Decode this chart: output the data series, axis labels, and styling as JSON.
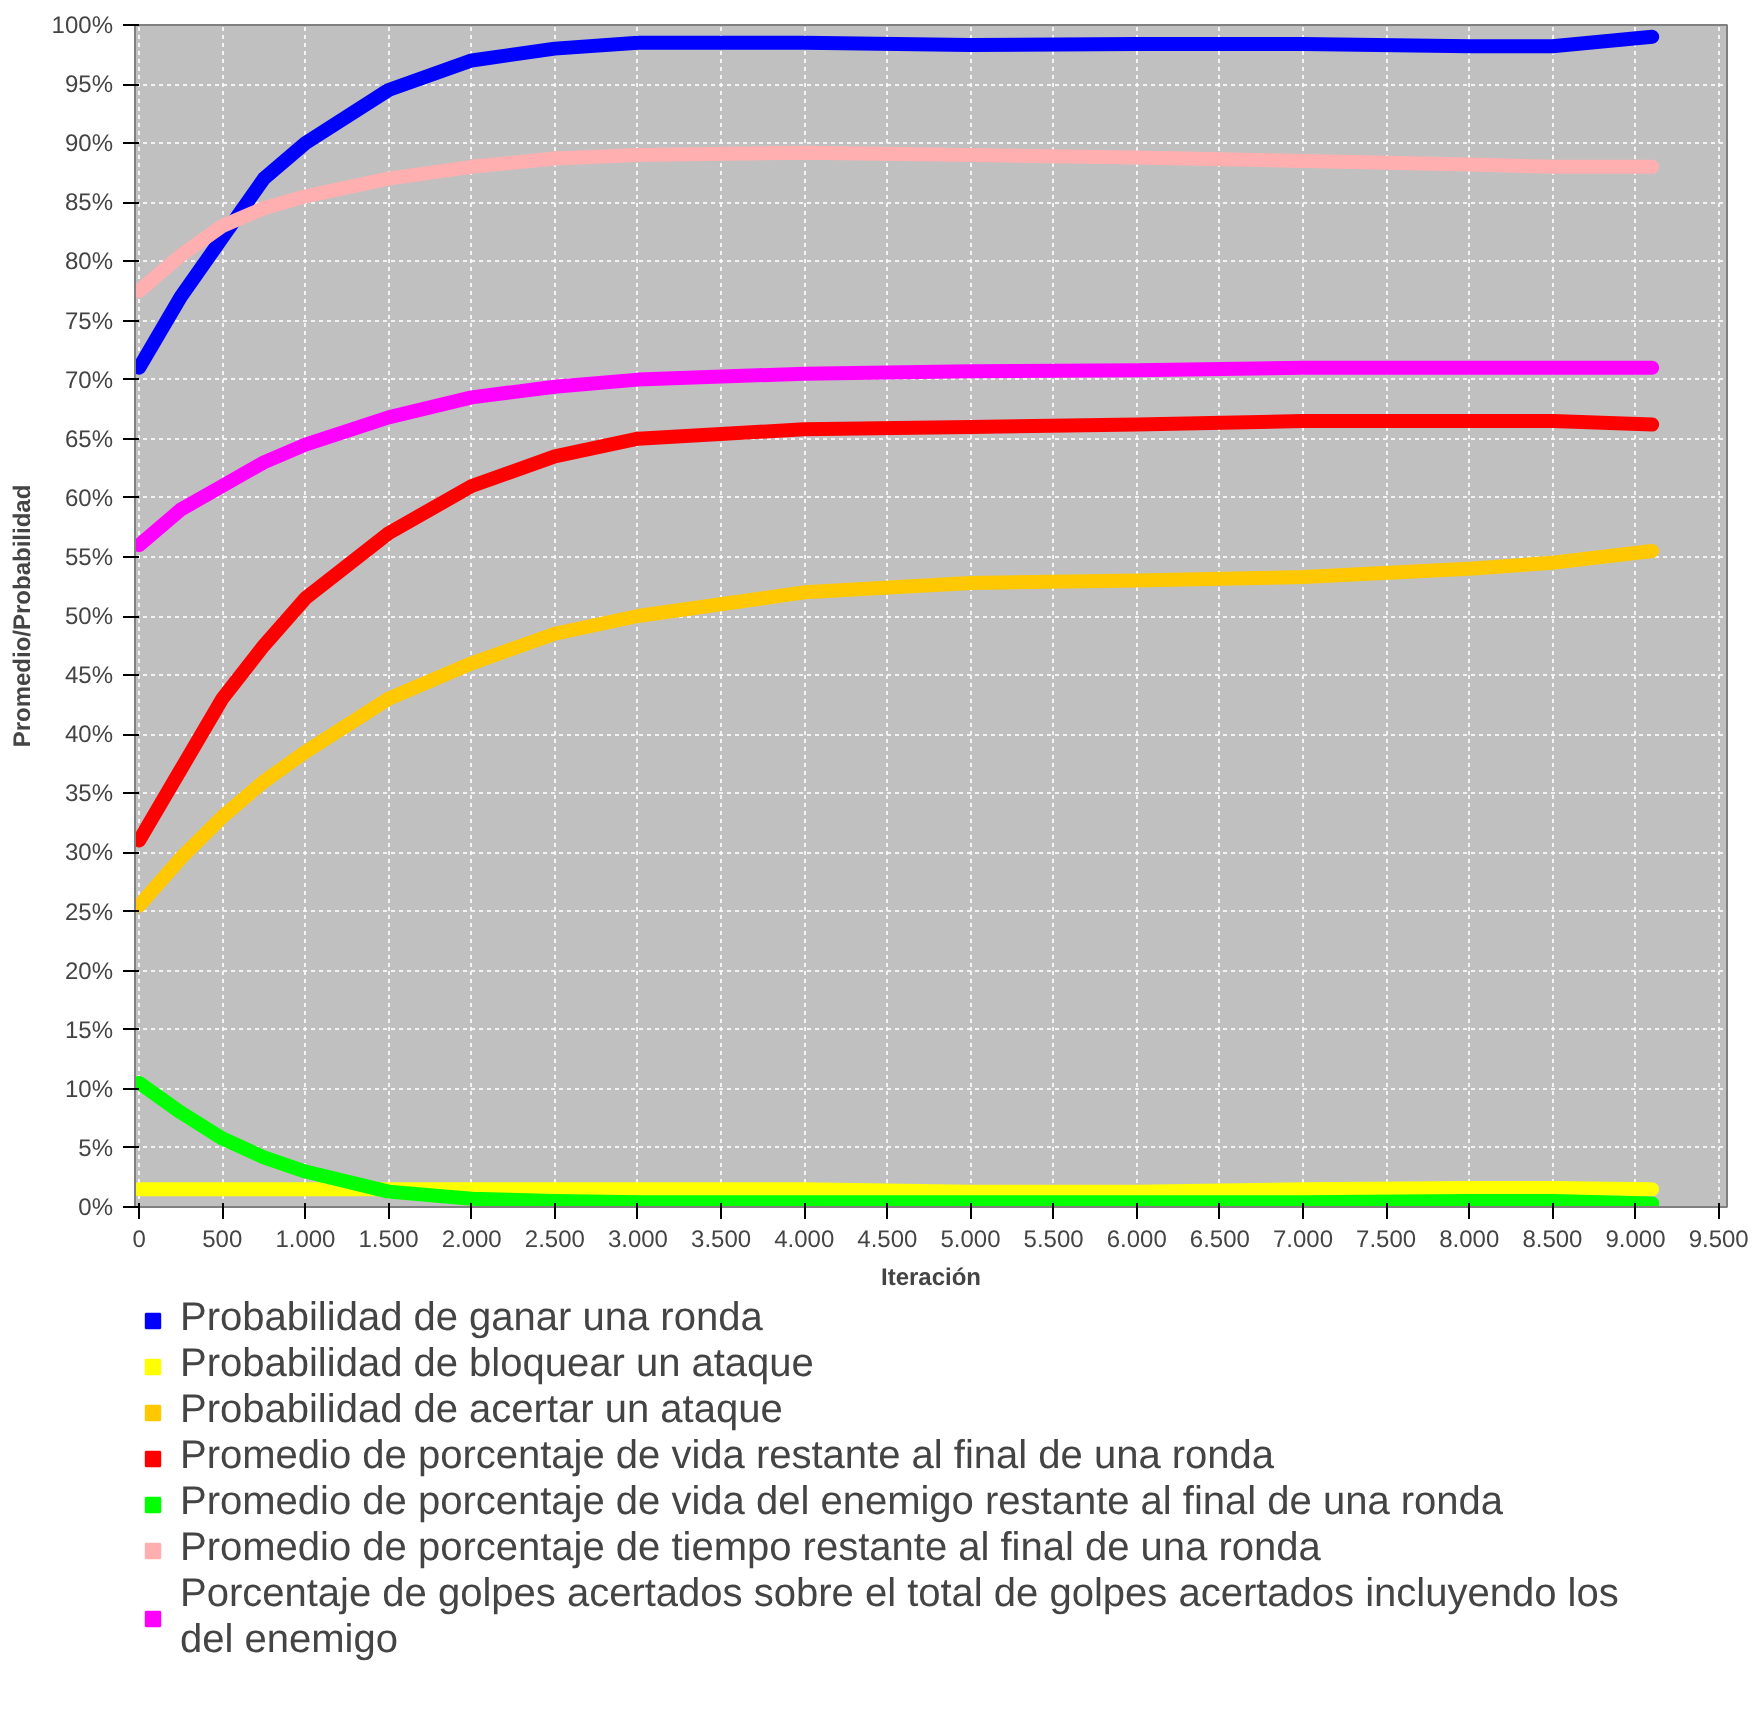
{
  "chart_data": {
    "type": "line",
    "xlabel": "Iteración",
    "ylabel": "Promedio/Probabilidad",
    "x": [
      0,
      250,
      500,
      750,
      1000,
      1500,
      2000,
      2500,
      3000,
      4000,
      5000,
      6000,
      7000,
      8000,
      8500,
      9100
    ],
    "series": [
      {
        "name": "Probabilidad de ganar una ronda",
        "color": "#0000ff",
        "values": [
          71,
          77,
          82,
          87,
          90,
          94.5,
          97,
          98,
          98.5,
          98.5,
          98.3,
          98.4,
          98.4,
          98.2,
          98.2,
          99
        ]
      },
      {
        "name": "Probabilidad de bloquear un ataque",
        "color": "#ffff00",
        "values": [
          1.5,
          1.5,
          1.5,
          1.5,
          1.5,
          1.5,
          1.5,
          1.5,
          1.5,
          1.5,
          1.3,
          1.3,
          1.5,
          1.6,
          1.6,
          1.5
        ]
      },
      {
        "name": "Probabilidad de acertar un ataque",
        "color": "#ffc800",
        "values": [
          25.5,
          29.5,
          33,
          36,
          38.5,
          43,
          46,
          48.5,
          50,
          52,
          52.8,
          53,
          53.3,
          54,
          54.5,
          55.5
        ]
      },
      {
        "name": "Promedio de porcentaje de vida restante al final de una ronda",
        "color": "#ff0000",
        "values": [
          31,
          37,
          43,
          47.5,
          51.5,
          57,
          61,
          63.5,
          65,
          65.8,
          66,
          66.2,
          66.5,
          66.5,
          66.5,
          66.2
        ]
      },
      {
        "name": "Promedio de porcentaje de vida del enemigo restante al final de una ronda",
        "color": "#00ff00",
        "values": [
          10.5,
          8,
          5.8,
          4.2,
          3,
          1.3,
          0.7,
          0.5,
          0.4,
          0.4,
          0.4,
          0.4,
          0.4,
          0.5,
          0.5,
          0.3
        ]
      },
      {
        "name": "Promedio de porcentaje de tiempo restante al final de una ronda",
        "color": "#ffafaf",
        "values": [
          77.5,
          80.5,
          83,
          84.5,
          85.5,
          87,
          88,
          88.7,
          89,
          89.2,
          89,
          88.8,
          88.5,
          88.2,
          88,
          88
        ]
      },
      {
        "name": "Porcentaje de golpes acertados sobre el total de golpes acertados incluyendo los del enemigo",
        "color": "#ff00ff",
        "values": [
          56,
          59,
          61,
          63,
          64.5,
          66.8,
          68.5,
          69.4,
          70,
          70.5,
          70.7,
          70.8,
          71,
          71,
          71,
          71
        ]
      }
    ],
    "xlim": [
      -25,
      9550
    ],
    "ylim": [
      0,
      100
    ],
    "xticks": [
      0,
      500,
      {
        "value": 1000,
        "label": "1.000"
      },
      {
        "value": 1500,
        "label": "1.500"
      },
      {
        "value": 2000,
        "label": "2.000"
      },
      {
        "value": 2500,
        "label": "2.500"
      },
      {
        "value": 3000,
        "label": "3.000"
      },
      {
        "value": 3500,
        "label": "3.500"
      },
      {
        "value": 4000,
        "label": "4.000"
      },
      {
        "value": 4500,
        "label": "4.500"
      },
      {
        "value": 5000,
        "label": "5.000"
      },
      {
        "value": 5500,
        "label": "5.500"
      },
      {
        "value": 6000,
        "label": "6.000"
      },
      {
        "value": 6500,
        "label": "6.500"
      },
      {
        "value": 7000,
        "label": "7.000"
      },
      {
        "value": 7500,
        "label": "7.500"
      },
      {
        "value": 8000,
        "label": "8.000"
      },
      {
        "value": 8500,
        "label": "8.500"
      },
      {
        "value": 9000,
        "label": "9.000"
      },
      {
        "value": 9500,
        "label": "9.500"
      }
    ],
    "yticks": [
      {
        "value": 0,
        "label": "0%"
      },
      {
        "value": 5,
        "label": "5%"
      },
      {
        "value": 10,
        "label": "10%"
      },
      {
        "value": 15,
        "label": "15%"
      },
      {
        "value": 20,
        "label": "20%"
      },
      {
        "value": 25,
        "label": "25%"
      },
      {
        "value": 30,
        "label": "30%"
      },
      {
        "value": 35,
        "label": "35%"
      },
      {
        "value": 40,
        "label": "40%"
      },
      {
        "value": 45,
        "label": "45%"
      },
      {
        "value": 50,
        "label": "50%"
      },
      {
        "value": 55,
        "label": "55%"
      },
      {
        "value": 60,
        "label": "60%"
      },
      {
        "value": 65,
        "label": "65%"
      },
      {
        "value": 70,
        "label": "70%"
      },
      {
        "value": 75,
        "label": "75%"
      },
      {
        "value": 80,
        "label": "80%"
      },
      {
        "value": 85,
        "label": "85%"
      },
      {
        "value": 90,
        "label": "90%"
      },
      {
        "value": 95,
        "label": "95%"
      },
      {
        "value": 100,
        "label": "100%"
      }
    ],
    "grid": true,
    "legend": "bottom",
    "marker": "none",
    "line_style": "solid"
  }
}
